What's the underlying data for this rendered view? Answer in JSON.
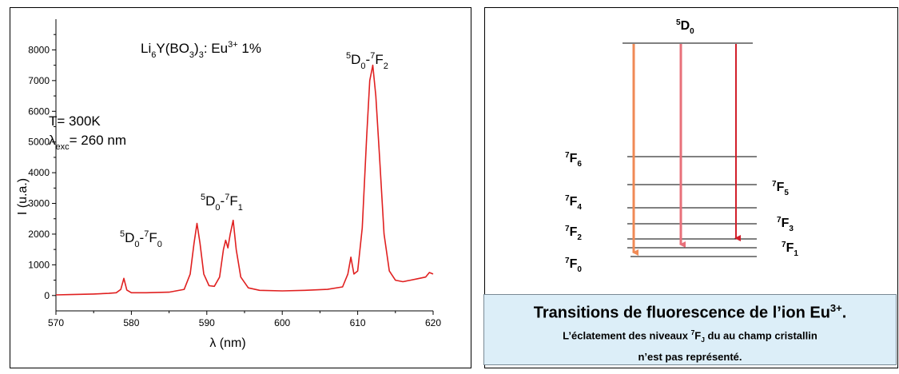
{
  "chart_data": {
    "type": "line",
    "title": "Li6Y(BO3)3: Eu3+ 1%",
    "xlabel": "λ (nm)",
    "ylabel": "I (u.a.)",
    "xlim": [
      570,
      620
    ],
    "ylim": [
      -500,
      9000
    ],
    "xticks": [
      570,
      580,
      590,
      600,
      610,
      620
    ],
    "yticks": [
      0,
      1000,
      2000,
      3000,
      4000,
      5000,
      6000,
      7000,
      8000
    ],
    "line_color": "#e02020",
    "annotations": {
      "temperature": "T= 300K",
      "excitation": "= 260 nm",
      "peak_d0_f0": "5D0-7F0",
      "peak_d0_f1": "5D0-7F1",
      "peak_d0_f2": "5D0-7F2"
    },
    "series": [
      {
        "x": [
          570,
          572,
          575,
          577,
          578,
          578.6,
          579,
          579.4,
          580,
          582,
          585,
          587,
          587.8,
          588.3,
          588.7,
          589.1,
          589.6,
          590.3,
          591,
          591.7,
          592.2,
          592.5,
          592.8,
          593.1,
          593.5,
          593.9,
          594.5,
          595.5,
          597,
          600,
          603,
          606,
          608,
          608.7,
          609.1,
          609.5,
          610,
          610.6,
          611.2,
          611.6,
          612,
          612.4,
          612.9,
          613.5,
          614.2,
          615,
          616,
          617,
          618,
          619,
          619.5,
          620
        ],
        "y": [
          20,
          30,
          50,
          70,
          90,
          200,
          560,
          180,
          90,
          90,
          110,
          200,
          700,
          1700,
          2350,
          1700,
          700,
          320,
          300,
          600,
          1500,
          1800,
          1550,
          2000,
          2450,
          1500,
          600,
          250,
          170,
          150,
          170,
          200,
          280,
          700,
          1250,
          700,
          800,
          2200,
          5200,
          7000,
          7500,
          6500,
          4500,
          2000,
          800,
          500,
          450,
          500,
          550,
          600,
          750,
          700
        ]
      }
    ]
  },
  "formula": {
    "main": "Li",
    "sub1": "6",
    "y": "Y(BO",
    "sub2": "3",
    "close": ")",
    "sub3": "3",
    "colon": ": Eu",
    "sup": "3+",
    "tail": " 1%"
  },
  "lambda_symbol": "λ",
  "lambda_sub": "exc",
  "levels": {
    "d0": {
      "sup": "5",
      "base": "D",
      "sub": "0"
    },
    "f6": {
      "sup": "7",
      "base": "F",
      "sub": "6"
    },
    "f5": {
      "sup": "7",
      "base": "F",
      "sub": "5"
    },
    "f4": {
      "sup": "7",
      "base": "F",
      "sub": "4"
    },
    "f3": {
      "sup": "7",
      "base": "F",
      "sub": "3"
    },
    "f2": {
      "sup": "7",
      "base": "F",
      "sub": "2"
    },
    "f1": {
      "sup": "7",
      "base": "F",
      "sub": "1"
    },
    "f0": {
      "sup": "7",
      "base": "F",
      "sub": "0"
    }
  },
  "arrow_colors": [
    "#f08a55",
    "#e8707a",
    "#d21f2a"
  ],
  "caption": {
    "title": "Transitions de fluorescence de l’ion Eu",
    "title_sup": "3+",
    "title_end": ".",
    "note_a": "L’éclatement des niveaux ",
    "note_sup": "7",
    "note_f": "F",
    "note_sub": "J",
    "note_b": " du au champ cristallin",
    "note_c": "n’est pas représenté."
  }
}
